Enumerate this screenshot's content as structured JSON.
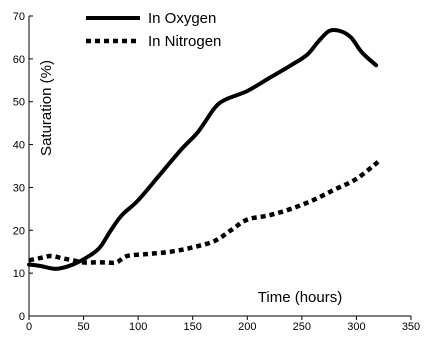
{
  "chart_data": {
    "type": "line",
    "xlabel": "Time (hours)",
    "ylabel": "Saturation (%)",
    "xlim": [
      0,
      350
    ],
    "ylim": [
      0,
      70
    ],
    "x_ticks": [
      0,
      50,
      100,
      150,
      200,
      250,
      300,
      350
    ],
    "y_ticks": [
      0,
      10,
      20,
      30,
      40,
      50,
      60,
      70
    ],
    "grid": false,
    "legend": "top-left",
    "series": [
      {
        "name": "In Oxygen",
        "style": "solid",
        "color": "#000000",
        "x": [
          0,
          10,
          25,
          40,
          55,
          65,
          75,
          85,
          100,
          120,
          140,
          155,
          170,
          180,
          200,
          220,
          240,
          255,
          265,
          275,
          285,
          295,
          305,
          318
        ],
        "y": [
          12,
          11.7,
          11,
          12,
          14,
          16,
          20,
          23.5,
          27,
          33,
          39,
          43,
          48.5,
          50.5,
          52.5,
          55.5,
          58.5,
          61,
          64,
          66.5,
          66.5,
          65,
          61.5,
          58.5
        ]
      },
      {
        "name": "In Nitrogen",
        "style": "dashed",
        "color": "#000000",
        "x": [
          0,
          10,
          20,
          30,
          40,
          50,
          60,
          70,
          80,
          90,
          110,
          130,
          150,
          170,
          185,
          200,
          220,
          240,
          260,
          280,
          300,
          320
        ],
        "y": [
          13,
          13.5,
          14,
          13.5,
          13,
          12.5,
          12.5,
          12.5,
          12.5,
          14,
          14.5,
          15,
          16,
          17.5,
          20,
          22.5,
          23.5,
          25,
          27,
          29.5,
          32,
          36
        ]
      }
    ]
  }
}
